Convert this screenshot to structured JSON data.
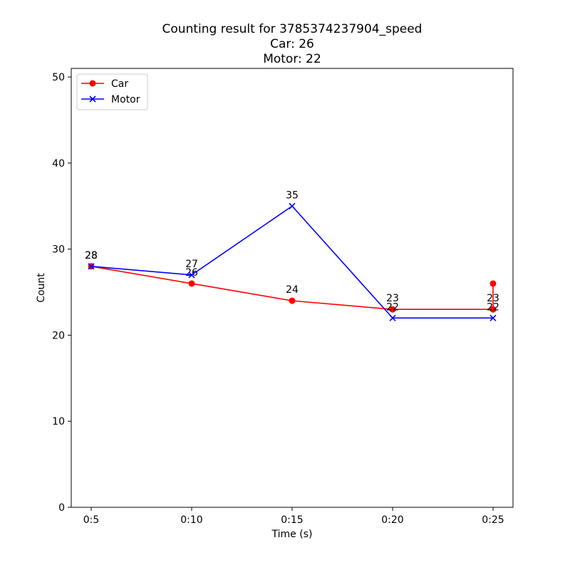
{
  "chart_data": {
    "type": "line",
    "title_lines": [
      "Counting result for 3785374237904_speed",
      "Car: 26",
      "Motor: 22"
    ],
    "xlabel": "Time (s)",
    "ylabel": "Count",
    "x": [
      "0:5",
      "0:10",
      "0:15",
      "0:20",
      "0:25"
    ],
    "ylim": [
      0,
      51
    ],
    "yticks": [
      0,
      10,
      20,
      30,
      40,
      50
    ],
    "grid": false,
    "legend_position": "top-left",
    "series": [
      {
        "name": "Car",
        "color": "#ff0000",
        "marker": "circle",
        "points": [
          {
            "x": "0:5",
            "y": 28,
            "label": "28"
          },
          {
            "x": "0:10",
            "y": 26,
            "label": "26"
          },
          {
            "x": "0:15",
            "y": 24,
            "label": "24"
          },
          {
            "x": "0:20",
            "y": 23,
            "label": "23"
          },
          {
            "x": "0:25",
            "y": 23,
            "label": "23"
          },
          {
            "x": "0:25",
            "y": 26,
            "label": ""
          }
        ]
      },
      {
        "name": "Motor",
        "color": "#0000ff",
        "marker": "x",
        "points": [
          {
            "x": "0:5",
            "y": 28,
            "label": "28"
          },
          {
            "x": "0:10",
            "y": 27,
            "label": "27"
          },
          {
            "x": "0:15",
            "y": 35,
            "label": "35"
          },
          {
            "x": "0:20",
            "y": 22,
            "label": "22"
          },
          {
            "x": "0:25",
            "y": 22,
            "label": "22"
          }
        ]
      }
    ]
  }
}
